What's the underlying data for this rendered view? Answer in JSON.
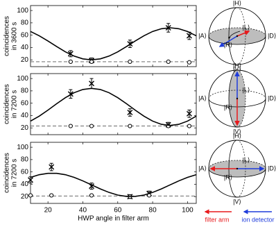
{
  "chart_data": [
    {
      "type": "line",
      "y_label": [
        "coincidences",
        "in 3600 s"
      ],
      "xlim": [
        10,
        105
      ],
      "ylim": [
        9,
        108
      ],
      "xticks": [
        20,
        40,
        60,
        80,
        100
      ],
      "yticks": [
        20,
        40,
        60,
        80,
        100
      ],
      "show_xtick_labels": false,
      "hlines": [
        17
      ],
      "series": [
        {
          "marker": "x",
          "color": "#000000",
          "x": [
            33,
            45,
            67,
            89,
            101
          ],
          "values": [
            30,
            19,
            46,
            72,
            59
          ],
          "errors": [
            5,
            4,
            6,
            7,
            6
          ]
        },
        {
          "marker": "o",
          "color": "#000000",
          "x": [
            33,
            45,
            67,
            89,
            101
          ],
          "values": [
            17,
            17,
            17,
            17,
            16
          ]
        },
        {
          "marker": "none",
          "color": "#000000",
          "x": [
            10,
            15,
            20,
            25,
            30,
            35,
            40,
            45,
            50,
            55,
            60,
            65,
            70,
            75,
            80,
            85,
            90,
            95,
            100,
            105
          ],
          "values": [
            66,
            59,
            50.5,
            41.5,
            33,
            26.1,
            21.6,
            20,
            21.6,
            26.1,
            33,
            41.5,
            50.5,
            59,
            66,
            70.4,
            72,
            70.4,
            66,
            59
          ]
        }
      ]
    },
    {
      "type": "line",
      "y_label": [
        "coincidences",
        "in 7200 s"
      ],
      "xlim": [
        10,
        105
      ],
      "ylim": [
        9,
        108
      ],
      "xticks": [
        20,
        40,
        60,
        80,
        100
      ],
      "yticks": [
        20,
        40,
        60,
        80,
        100
      ],
      "show_xtick_labels": false,
      "hlines": [
        23
      ],
      "series": [
        {
          "marker": "x",
          "color": "#000000",
          "x": [
            33,
            45,
            67,
            89,
            101
          ],
          "values": [
            75,
            92,
            45,
            25,
            43
          ],
          "errors": [
            7,
            8,
            6,
            4,
            6
          ]
        },
        {
          "marker": "o",
          "color": "#000000",
          "x": [
            33,
            45,
            67,
            89,
            101
          ],
          "values": [
            23,
            23,
            23,
            23,
            23
          ]
        },
        {
          "marker": "none",
          "color": "#000000",
          "x": [
            10,
            15,
            20,
            25,
            30,
            35,
            40,
            45,
            50,
            55,
            60,
            65,
            70,
            75,
            80,
            85,
            90,
            95,
            100,
            105
          ],
          "values": [
            31,
            39,
            48.8,
            59.2,
            69,
            77,
            82.2,
            84,
            82.2,
            77,
            69,
            59.2,
            48.8,
            39,
            31,
            25.8,
            24,
            25.8,
            31,
            39
          ]
        }
      ]
    },
    {
      "type": "line",
      "y_label": [
        "coincidences",
        "in 7200 s"
      ],
      "x_label": "HWP angle in filter arm",
      "xlim": [
        10,
        105
      ],
      "ylim": [
        9,
        108
      ],
      "xticks": [
        20,
        40,
        60,
        80,
        100
      ],
      "yticks": [
        20,
        40,
        60,
        80,
        100
      ],
      "show_xtick_labels": true,
      "hlines": [
        21
      ],
      "series": [
        {
          "marker": "x",
          "color": "#000000",
          "x": [
            10,
            22,
            45,
            67,
            78
          ],
          "values": [
            47,
            68,
            37,
            20,
            25
          ],
          "errors": [
            5,
            6,
            5,
            3,
            4
          ]
        },
        {
          "marker": "o",
          "color": "#000000",
          "x": [
            10,
            22,
            45,
            67,
            78
          ],
          "values": [
            22,
            22,
            22,
            20,
            22
          ]
        },
        {
          "marker": "none",
          "color": "#000000",
          "x": [
            10,
            15,
            20,
            25,
            30,
            35,
            40,
            45,
            50,
            55,
            60,
            65,
            70,
            75,
            80,
            85,
            90,
            95,
            100,
            105
          ],
          "values": [
            51.2,
            55.5,
            57.7,
            57.7,
            55.5,
            51.2,
            45.5,
            39,
            32.5,
            26.8,
            22.5,
            20.3,
            20.3,
            22.5,
            26.8,
            32.5,
            39,
            45.5,
            51.2,
            55.5
          ]
        }
      ]
    }
  ],
  "bloch_spheres": [
    {
      "H": "|H⟩",
      "V": "|V⟩",
      "A": "|A⟩",
      "D": "|D⟩",
      "L": "|L⟩",
      "R": "|R⟩"
    },
    {
      "H": "|H⟩",
      "V": "|V⟩",
      "A": "|A⟩",
      "D": "|D⟩",
      "L": "|L⟩",
      "R": "|R⟩"
    },
    {
      "H": "|H⟩",
      "V": "|V⟩",
      "A": "|A⟩",
      "D": "|D⟩",
      "L": "|L⟩",
      "R": "|R⟩"
    }
  ],
  "arrow_legend": [
    {
      "name": "filter arm",
      "color": "#e8191c"
    },
    {
      "name": "ion detector",
      "color": "#1f3cdc"
    }
  ]
}
